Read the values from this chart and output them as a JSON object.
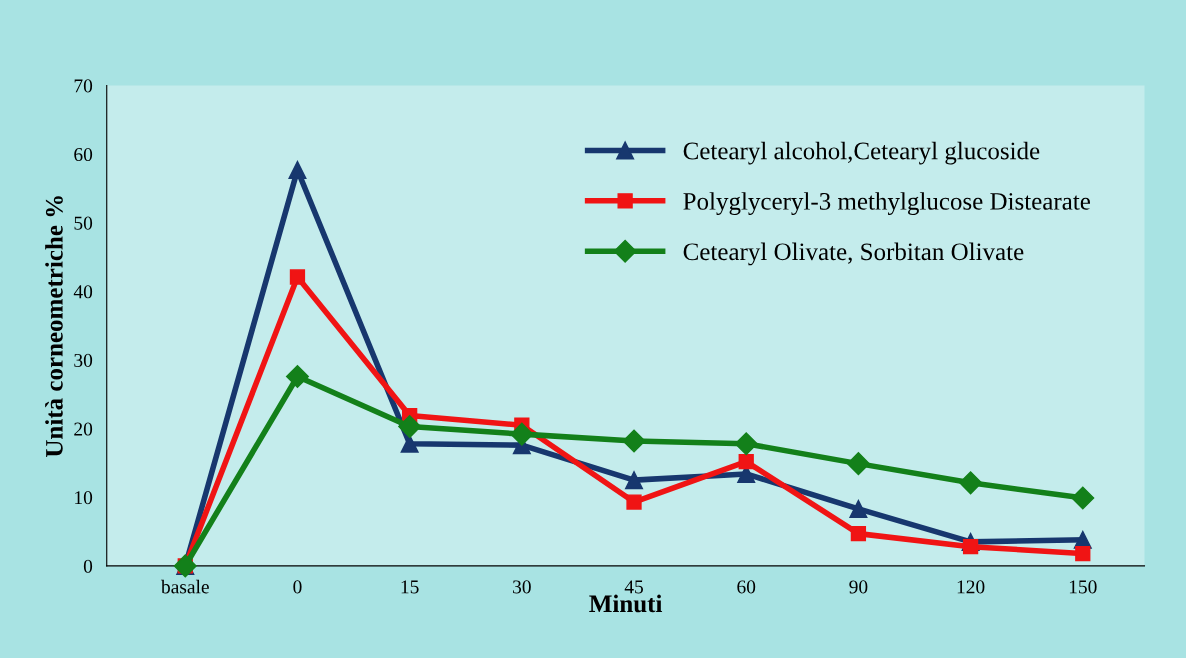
{
  "chart_data": {
    "type": "line",
    "xlabel": "Minuti",
    "ylabel": "Unità corneometriche %",
    "categories": [
      "basale",
      "0",
      "15",
      "30",
      "45",
      "60",
      "90",
      "120",
      "150"
    ],
    "series": [
      {
        "name": "Cetearyl alcohol,Cetearyl glucoside",
        "color": "#17376e",
        "marker": "triangle",
        "values": [
          0,
          57.7,
          17.8,
          17.6,
          12.5,
          13.4,
          8.3,
          3.5,
          3.8
        ]
      },
      {
        "name": "Polyglyceryl-3 methylglucose Distearate",
        "color": "#f01414",
        "marker": "square",
        "values": [
          0,
          42.1,
          21.9,
          20.5,
          9.3,
          15.2,
          4.7,
          2.8,
          1.8
        ]
      },
      {
        "name": "Cetearyl Olivate, Sorbitan Olivate",
        "color": "#13801a",
        "marker": "diamond",
        "values": [
          0,
          27.6,
          20.3,
          19.2,
          18.2,
          17.8,
          14.9,
          12.1,
          9.9
        ]
      }
    ],
    "ylim": [
      0,
      70
    ],
    "yticks": [
      0,
      10,
      20,
      30,
      40,
      50,
      60,
      70
    ],
    "grid": false,
    "legend": "top right",
    "line_style": "solid"
  }
}
